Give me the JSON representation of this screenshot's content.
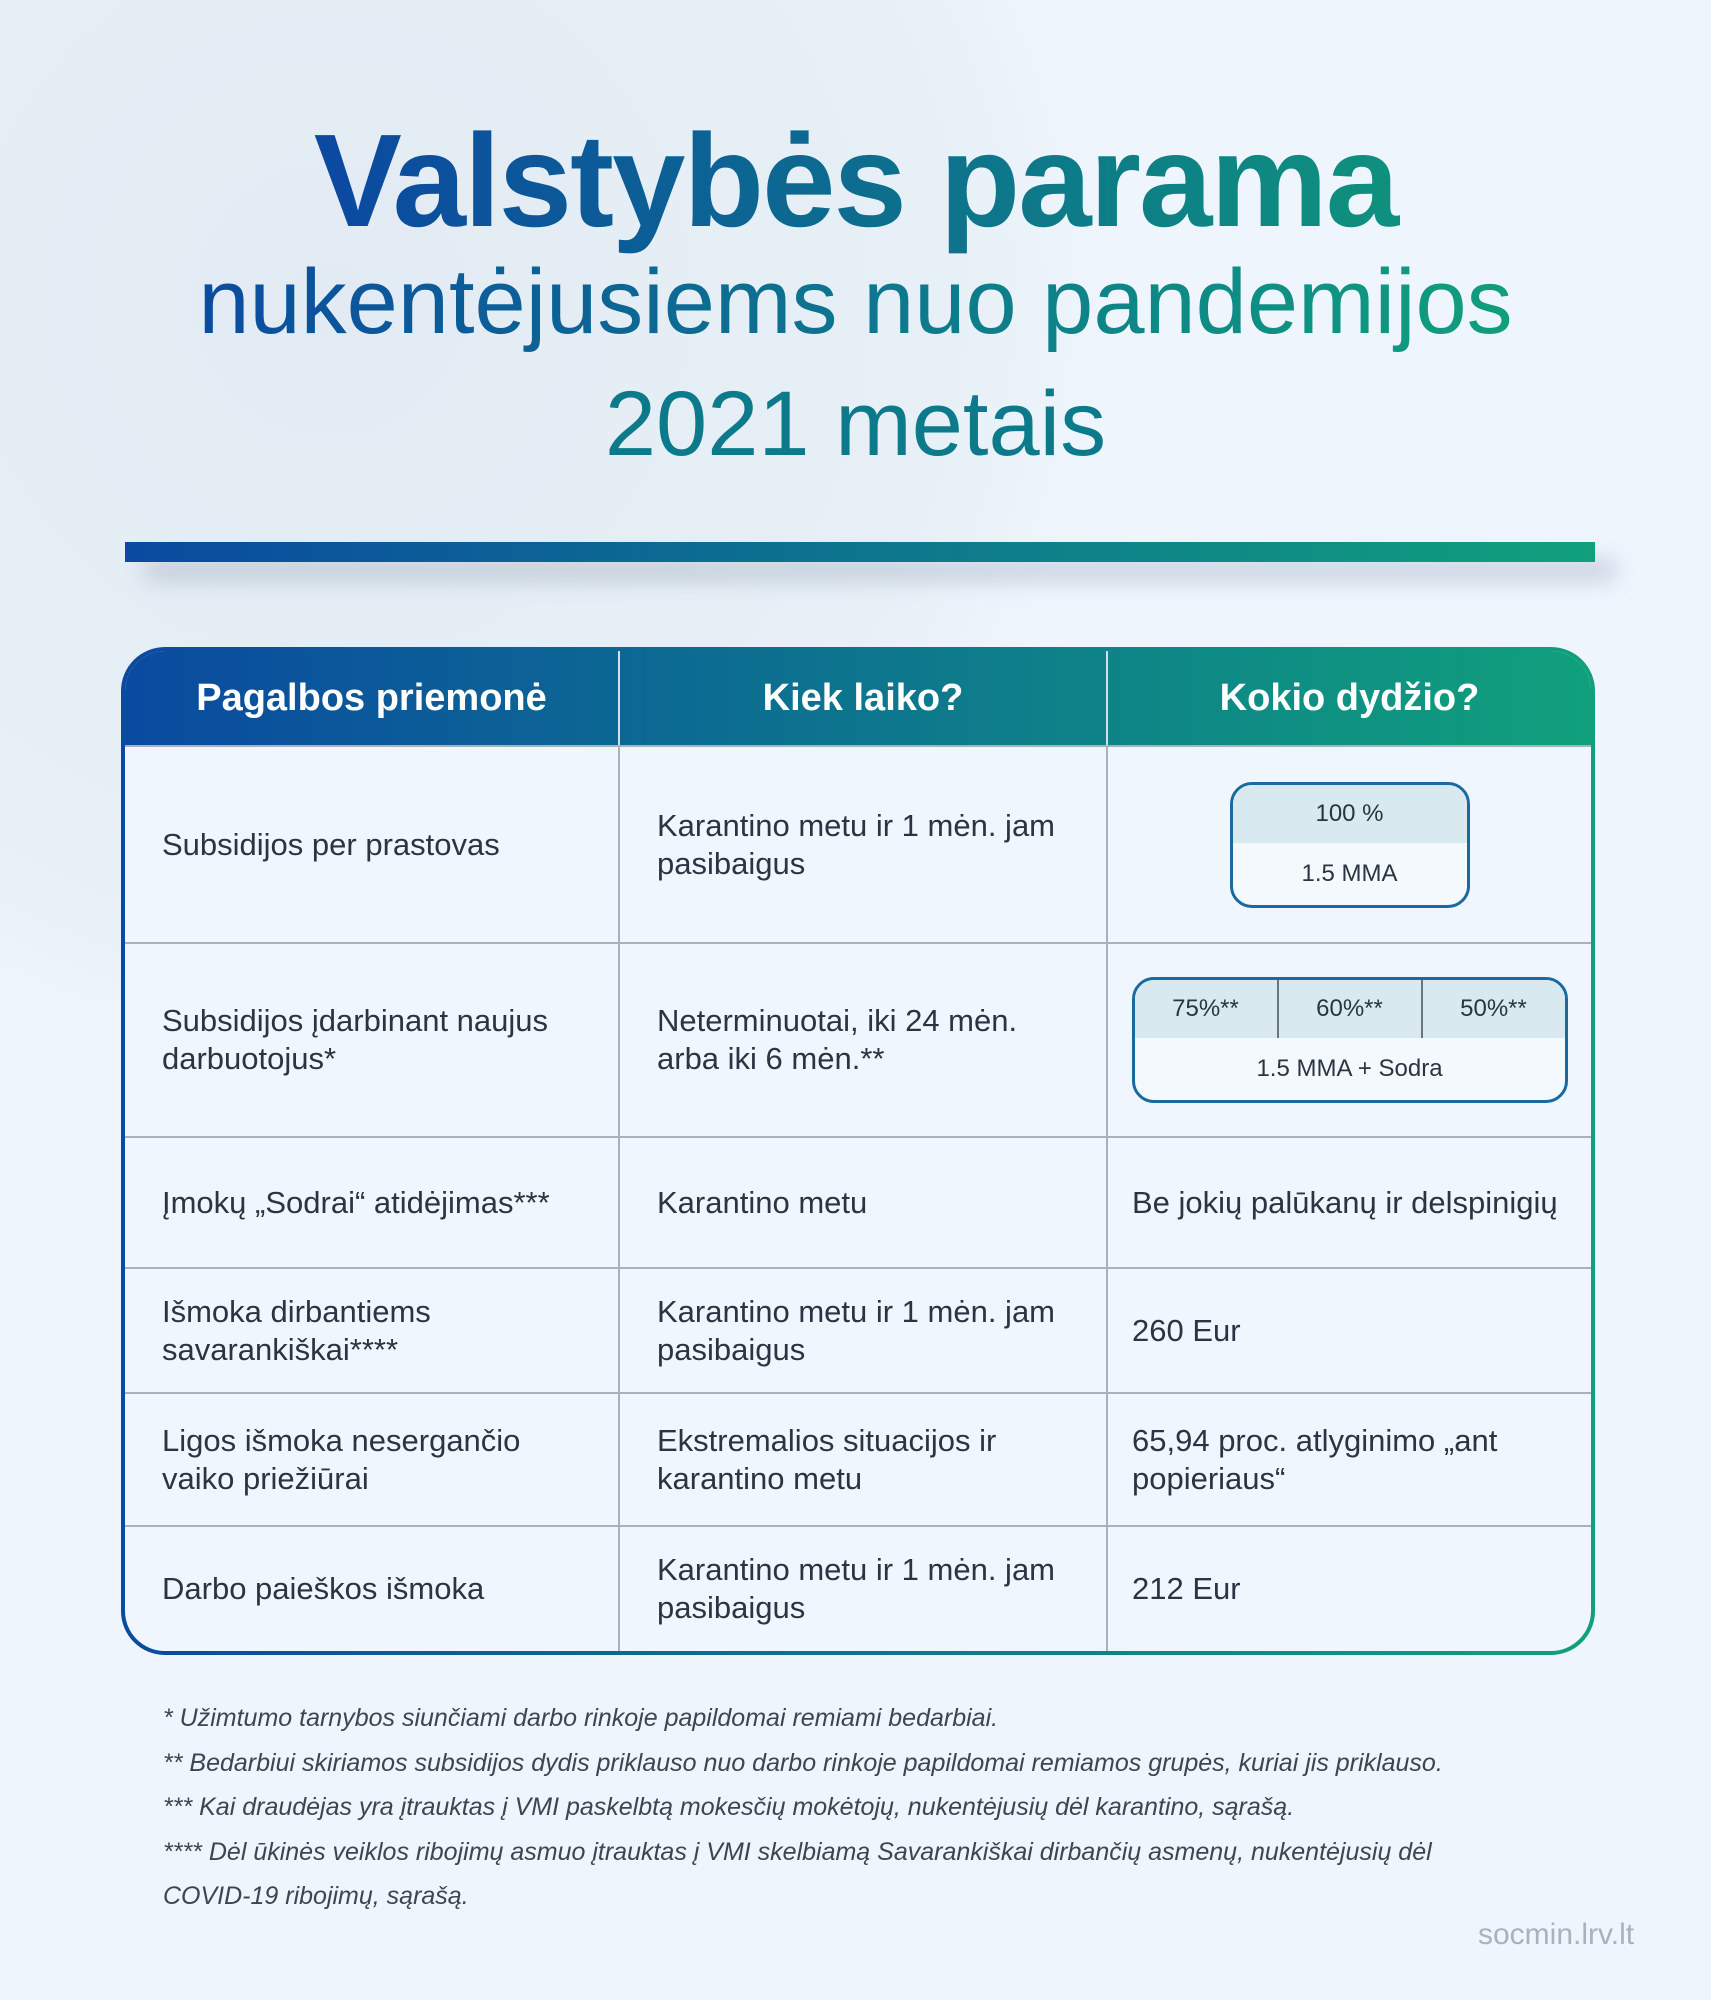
{
  "title": {
    "line1": "Valstybės parama",
    "line2": "nukentėjusiems nuo pandemijos",
    "line3": "2021 metais"
  },
  "colors": {
    "blue": "#0a4aa0",
    "green": "#10a07c"
  },
  "table": {
    "headers": [
      "Pagalbos priemonė",
      "Kiek laiko?",
      "Kokio dydžio?"
    ],
    "rows": [
      {
        "measure": "Subsidijos per prastovas",
        "duration": "Karantino metu ir 1 mėn. jam pasibaigus",
        "amount_box": {
          "top": [
            "100 %"
          ],
          "bottom": "1.5 MMA"
        }
      },
      {
        "measure": "Subsidijos įdarbinant naujus darbuotojus*",
        "duration": "Neterminuotai, iki 24 mėn. arba iki 6 mėn.**",
        "amount_box": {
          "top": [
            "75%**",
            "60%**",
            "50%**"
          ],
          "bottom": "1.5 MMA + Sodra"
        }
      },
      {
        "measure": "Įmokų „Sodrai“ atidėjimas***",
        "duration": "Karantino metu",
        "amount": "Be jokių palūkanų ir delspinigių"
      },
      {
        "measure": "Išmoka dirbantiems savarankiškai****",
        "duration": "Karantino metu ir 1 mėn. jam pasibaigus",
        "amount": "260 Eur"
      },
      {
        "measure": "Ligos išmoka nesergančio vaiko priežiūrai",
        "duration": "Ekstremalios situacijos ir karantino metu",
        "amount": "65,94 proc. atlyginimo „ant popieriaus“"
      },
      {
        "measure": "Darbo paieškos išmoka",
        "duration": "Karantino metu ir 1 mėn. jam pasibaigus",
        "amount": "212 Eur"
      }
    ]
  },
  "footnotes": [
    "* Užimtumo tarnybos siunčiami darbo rinkoje papildomai remiami bedarbiai.",
    "** Bedarbiui skiriamos subsidijos dydis priklauso nuo darbo rinkoje papildomai remiamos grupės, kuriai jis priklauso.",
    "*** Kai draudėjas yra įtrauktas į VMI paskelbtą mokesčių mokėtojų, nukentėjusių dėl karantino, sąrašą.",
    "**** Dėl ūkinės veiklos ribojimų asmuo įtrauktas į VMI skelbiamą Savarankiškai dirbančių asmenų, nukentėjusių dėl",
    "COVID-19 ribojimų, sąrašą."
  ],
  "source": "socmin.lrv.lt"
}
